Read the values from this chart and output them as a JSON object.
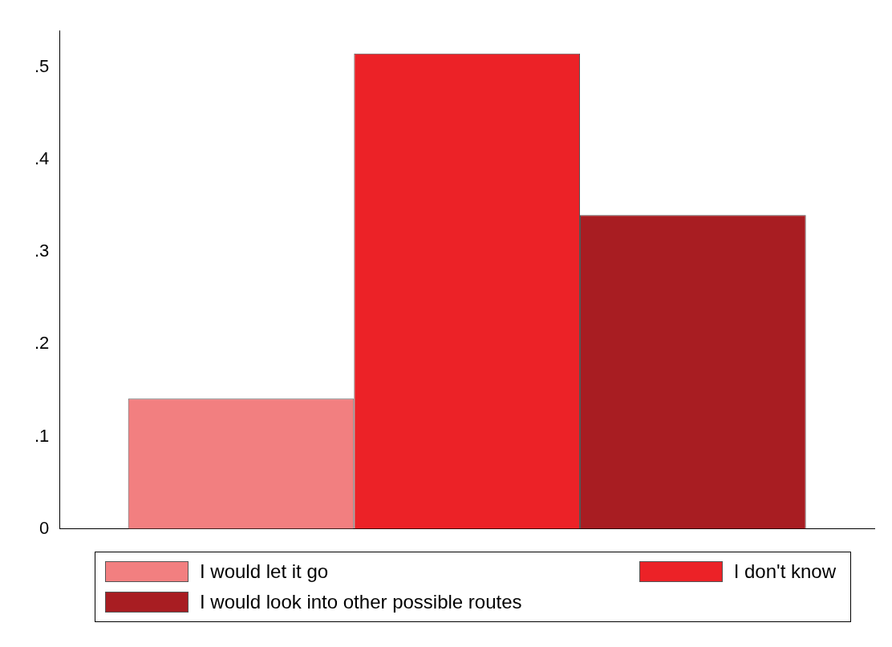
{
  "chart_data": {
    "type": "bar",
    "categories": [
      null
    ],
    "series": [
      {
        "name": "I would let it go",
        "color": "#f27f80",
        "values": [
          0.141
        ]
      },
      {
        "name": "I don't know",
        "color": "#ec2227",
        "values": [
          0.515
        ]
      },
      {
        "name": "I would look into other possible routes",
        "color": "#a81d22",
        "values": [
          0.34
        ]
      }
    ],
    "ylim": [
      0,
      0.54
    ],
    "yticks": [
      0,
      {
        "value": 0.1,
        "label": ".1"
      },
      {
        "value": 0.2,
        "label": ".2"
      },
      {
        "value": 0.3,
        "label": ".3"
      },
      {
        "value": 0.4,
        "label": ".4"
      },
      {
        "value": 0.5,
        "label": ".5"
      }
    ],
    "grid": false,
    "legend": "bottom"
  }
}
